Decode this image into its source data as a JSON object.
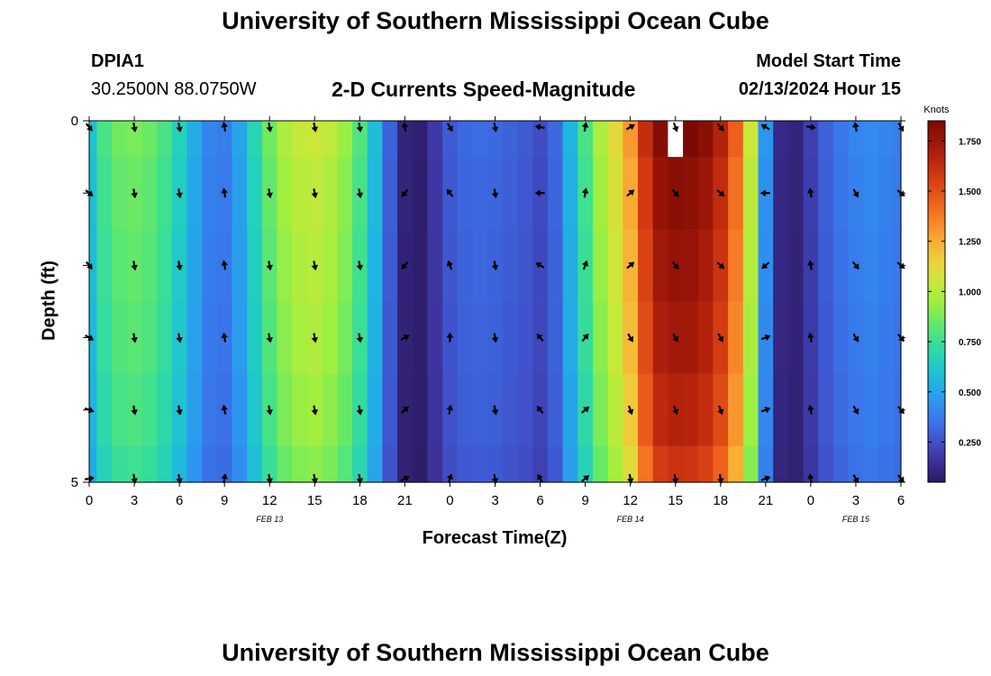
{
  "page": {
    "title": "University of Southern Mississippi Ocean Cube",
    "footer_title": "University of Southern Mississippi Ocean Cube"
  },
  "header": {
    "station_id": "DPIA1",
    "station_coords": "30.2500N  88.0750W",
    "plot_title": "2-D Currents Speed-Magnitude",
    "model_start_label": "Model Start Time",
    "model_start_value": "02/13/2024 Hour 15"
  },
  "chart_data": {
    "type": "heatmap",
    "title": "2-D Currents Speed-Magnitude",
    "xlabel": "Forecast Time(Z)",
    "ylabel": "Depth (ft)",
    "x_hours": [
      0,
      1,
      2,
      3,
      4,
      5,
      6,
      7,
      8,
      9,
      10,
      11,
      12,
      13,
      14,
      15,
      16,
      17,
      18,
      19,
      20,
      21,
      22,
      23,
      24,
      25,
      26,
      27,
      28,
      29,
      30,
      31,
      32,
      33,
      34,
      35,
      36,
      37,
      38,
      39,
      40,
      41,
      42,
      43,
      44,
      45,
      46,
      47,
      48,
      49,
      50,
      51,
      52,
      53,
      54
    ],
    "x_tick_hours": [
      0,
      3,
      6,
      9,
      12,
      15,
      18,
      21,
      24,
      27,
      30,
      33,
      36,
      39,
      42,
      45,
      48,
      51,
      54
    ],
    "x_tick_labels": [
      "0",
      "3",
      "6",
      "9",
      "12",
      "15",
      "18",
      "21",
      "0",
      "3",
      "6",
      "9",
      "12",
      "15",
      "18",
      "21",
      "0",
      "3",
      "6"
    ],
    "date_labels": [
      {
        "hour": 12,
        "label": "FEB 13"
      },
      {
        "hour": 36,
        "label": "FEB 14"
      },
      {
        "hour": 51,
        "label": "FEB 15"
      }
    ],
    "y_ticks": [
      0,
      1,
      2,
      3,
      4,
      5
    ],
    "y_tick_labels": [
      "0",
      "",
      "",
      "",
      "",
      "5"
    ],
    "ylim": [
      0,
      5
    ],
    "depth_levels": [
      0,
      1,
      2,
      3,
      4,
      5
    ],
    "speed_profile_knots": [
      0.6,
      0.78,
      0.86,
      0.88,
      0.85,
      0.78,
      0.66,
      0.52,
      0.4,
      0.38,
      0.5,
      0.68,
      0.86,
      0.98,
      1.04,
      1.06,
      1.02,
      0.94,
      0.8,
      0.58,
      0.3,
      0.1,
      0.08,
      0.18,
      0.28,
      0.32,
      0.33,
      0.32,
      0.3,
      0.28,
      0.24,
      0.32,
      0.55,
      0.78,
      0.98,
      1.12,
      1.3,
      1.62,
      1.82,
      1.86,
      1.85,
      1.8,
      1.68,
      1.45,
      1.05,
      0.45,
      0.12,
      0.1,
      0.2,
      0.3,
      0.36,
      0.4,
      0.42,
      0.4,
      0.38
    ],
    "depth_speed_factor": [
      1.0,
      0.97,
      0.95,
      0.93,
      0.9,
      0.86
    ],
    "missing_cells": [
      {
        "hour": 39,
        "depth": 0
      }
    ],
    "vectors_hours": [
      0,
      3,
      6,
      9,
      12,
      15,
      18,
      21,
      24,
      27,
      30,
      33,
      36,
      39,
      42,
      45,
      48,
      51,
      54
    ],
    "vectors": [
      [
        140,
        170,
        170,
        -10,
        170,
        170,
        170,
        -10,
        150,
        170,
        -80,
        10,
        60,
        160,
        140,
        -60,
        100,
        -10,
        150
      ],
      [
        130,
        170,
        170,
        -10,
        170,
        170,
        170,
        -140,
        -40,
        170,
        -90,
        10,
        50,
        140,
        130,
        -90,
        -10,
        150,
        130
      ],
      [
        140,
        170,
        170,
        -10,
        170,
        170,
        170,
        -140,
        -20,
        170,
        -60,
        20,
        50,
        140,
        130,
        -130,
        -10,
        140,
        130
      ],
      [
        120,
        170,
        170,
        -10,
        170,
        170,
        170,
        60,
        0,
        170,
        -40,
        40,
        150,
        150,
        150,
        70,
        -10,
        150,
        140
      ],
      [
        110,
        170,
        170,
        -10,
        170,
        170,
        170,
        50,
        10,
        170,
        -40,
        50,
        160,
        160,
        160,
        70,
        -10,
        150,
        140
      ],
      [
        80,
        170,
        170,
        10,
        170,
        170,
        170,
        60,
        20,
        170,
        -30,
        50,
        170,
        170,
        170,
        70,
        -10,
        150,
        140
      ]
    ],
    "colorbar": {
      "unit_label": "Knots",
      "range": [
        0.05,
        1.85
      ],
      "tick_values": [
        0.25,
        0.5,
        0.75,
        1.0,
        1.25,
        1.5,
        1.75
      ],
      "tick_labels": [
        "0.250",
        "0.500",
        "0.750",
        "1.000",
        "1.250",
        "1.500",
        "1.750"
      ],
      "colors": [
        "#2b1a60",
        "#3b2f97",
        "#4050c8",
        "#3a74ea",
        "#2d96ef",
        "#1eb6e0",
        "#22cfbf",
        "#3bdf94",
        "#6ae964",
        "#a0ef3f",
        "#c9e83a",
        "#ecd23c",
        "#f9ad34",
        "#f88528",
        "#ec5f1c",
        "#d73f13",
        "#bb270d",
        "#9a1508",
        "#7a0b04"
      ]
    }
  }
}
